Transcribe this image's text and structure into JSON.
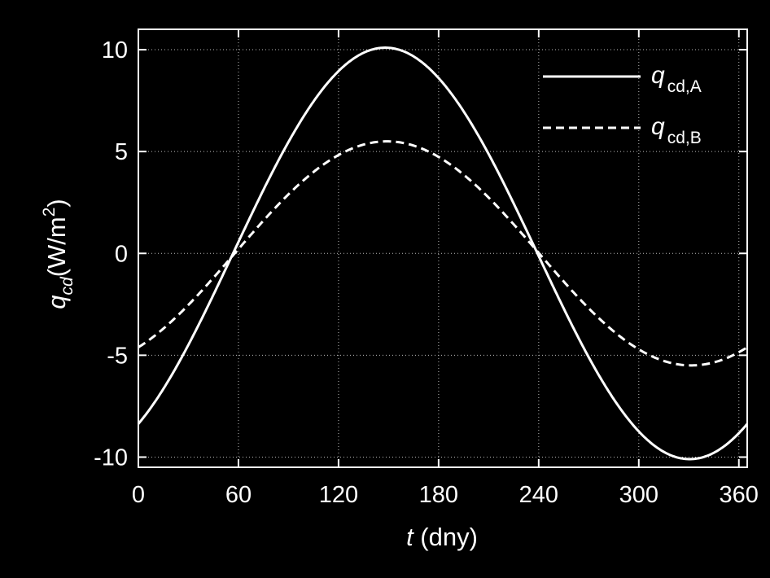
{
  "chart_data": {
    "type": "line",
    "xlabel_symbol": "t",
    "xlabel_unit": " (dny)",
    "ylabel_symbol": "q",
    "ylabel_subscript": "cd",
    "ylabel_unit": "(W/m",
    "ylabel_unit_sup": "2",
    "ylabel_unit_close": ")",
    "xlim": [
      0,
      365
    ],
    "ylim": [
      -10.5,
      11
    ],
    "xticks": [
      0,
      60,
      120,
      180,
      240,
      300,
      360
    ],
    "yticks": [
      -10,
      -5,
      0,
      5,
      10
    ],
    "xtick_labels": [
      "0",
      "60",
      "120",
      "180",
      "240",
      "300",
      "360"
    ],
    "ytick_labels": [
      "-10",
      "-5",
      "0",
      "5",
      "10"
    ],
    "grid": true,
    "legend_position": "top-right",
    "series": [
      {
        "name_symbol": "q",
        "name_subscript": "cd,A",
        "style": "solid",
        "color": "#ffffff",
        "amplitude": 10.1,
        "peak_day": 148,
        "x": [
          0,
          15,
          30,
          45,
          60,
          75,
          90,
          105,
          120,
          135,
          148,
          165,
          180,
          195,
          210,
          225,
          240,
          255,
          270,
          285,
          300,
          315,
          331,
          345,
          365
        ],
        "y": [
          -8.4,
          -6.9,
          -4.9,
          -2.6,
          0.3,
          3.0,
          5.6,
          7.7,
          9.1,
          9.9,
          10.1,
          9.5,
          8.0,
          5.9,
          3.5,
          0.9,
          -1.3,
          -4.1,
          -6.4,
          -8.2,
          -9.4,
          -10.0,
          -10.1,
          -9.6,
          -8.3
        ]
      },
      {
        "name_symbol": "q",
        "name_subscript": "cd,B",
        "style": "dashed",
        "color": "#ffffff",
        "amplitude": 5.5,
        "peak_day": 149,
        "x": [
          0,
          15,
          30,
          45,
          60,
          75,
          90,
          105,
          120,
          135,
          149,
          165,
          180,
          195,
          210,
          225,
          240,
          255,
          270,
          285,
          300,
          315,
          332,
          345,
          365
        ],
        "y": [
          -4.5,
          -3.8,
          -2.7,
          -1.4,
          0.1,
          1.6,
          3.0,
          4.2,
          5.0,
          5.4,
          5.5,
          5.3,
          4.5,
          3.4,
          2.0,
          0.6,
          -0.7,
          -2.2,
          -3.4,
          -4.5,
          -5.1,
          -5.5,
          -5.5,
          -5.3,
          -4.6
        ]
      }
    ]
  }
}
